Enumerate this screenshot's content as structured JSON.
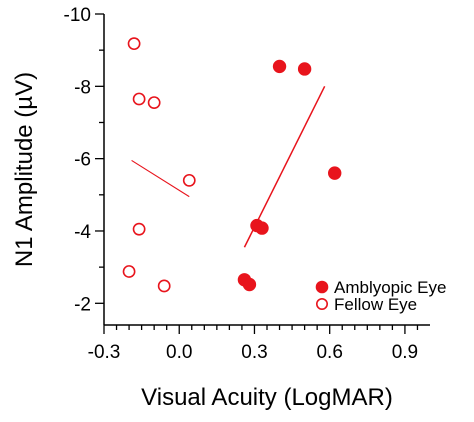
{
  "chart_data": {
    "type": "scatter",
    "title": "",
    "xlabel": "Visual Acuity (LogMAR)",
    "ylabel": "N1 Amplitude (µV)",
    "xlim": [
      -0.3,
      1.0
    ],
    "ylim": [
      -1.4,
      -10.0
    ],
    "y_axis_inverted": true,
    "x_ticks": [
      {
        "value": -0.3,
        "label": "-0.3"
      },
      {
        "value": 0.0,
        "label": "0.0"
      },
      {
        "value": 0.3,
        "label": "0.3"
      },
      {
        "value": 0.6,
        "label": "0.6"
      },
      {
        "value": 0.9,
        "label": "0.9"
      }
    ],
    "y_ticks": [
      {
        "value": -10,
        "label": "-10"
      },
      {
        "value": -8,
        "label": "-8"
      },
      {
        "value": -6,
        "label": "-6"
      },
      {
        "value": -4,
        "label": "-4"
      },
      {
        "value": -2,
        "label": "-2"
      }
    ],
    "grid": false,
    "legend_position": "bottom-right",
    "series": [
      {
        "name": "Amblyopic Eye",
        "marker": "filled-circle",
        "color": "#e8141c",
        "points": [
          {
            "x": 0.4,
            "y": -8.55
          },
          {
            "x": 0.5,
            "y": -8.48
          },
          {
            "x": 0.62,
            "y": -5.6
          },
          {
            "x": 0.31,
            "y": -4.15
          },
          {
            "x": 0.33,
            "y": -4.08
          },
          {
            "x": 0.26,
            "y": -2.65
          },
          {
            "x": 0.28,
            "y": -2.52
          }
        ],
        "fit_line": {
          "x": [
            0.26,
            0.58
          ],
          "y": [
            -3.55,
            -8.0
          ]
        }
      },
      {
        "name": "Fellow Eye",
        "marker": "open-circle",
        "color": "#e8141c",
        "points": [
          {
            "x": -0.18,
            "y": -9.18
          },
          {
            "x": -0.16,
            "y": -7.65
          },
          {
            "x": -0.1,
            "y": -7.55
          },
          {
            "x": 0.04,
            "y": -5.4
          },
          {
            "x": -0.16,
            "y": -4.05
          },
          {
            "x": -0.2,
            "y": -2.88
          },
          {
            "x": -0.06,
            "y": -2.48
          }
        ],
        "fit_line": {
          "x": [
            -0.19,
            0.04
          ],
          "y": [
            -5.95,
            -4.95
          ]
        }
      }
    ]
  }
}
